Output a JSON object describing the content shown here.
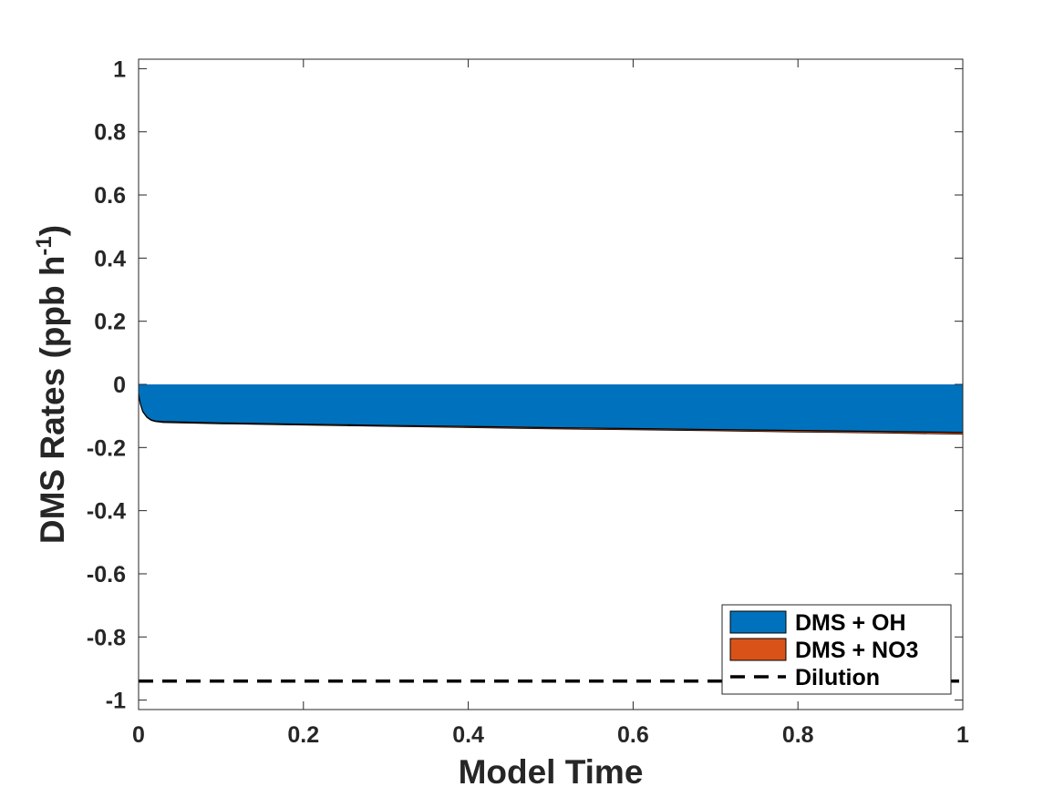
{
  "chart_data": {
    "type": "area",
    "xlabel": "Model Time",
    "ylabel_main": "DMS Rates (ppb h",
    "ylabel_sup": "-1",
    "ylabel_close": ")",
    "xlim": [
      0,
      1
    ],
    "ylim": [
      -1.03,
      1.03
    ],
    "x_ticks": [
      0,
      0.2,
      0.4,
      0.6,
      0.8,
      1
    ],
    "x_tick_labels": [
      "0",
      "0.2",
      "0.4",
      "0.6",
      "0.8",
      "1"
    ],
    "y_ticks": [
      1,
      0.8,
      0.6,
      0.4,
      0.2,
      0,
      -0.2,
      -0.4,
      -0.6,
      -0.8,
      -1
    ],
    "y_tick_labels": [
      "1",
      "0.8",
      "0.6",
      "0.4",
      "0.2",
      "0",
      "-0.2",
      "-0.4",
      "-0.6",
      "-0.8",
      "-1"
    ],
    "x": [
      0,
      0.002,
      0.005,
      0.01,
      0.015,
      0.02,
      0.03,
      0.05,
      0.1,
      0.2,
      0.3,
      0.4,
      0.5,
      0.6,
      0.7,
      0.8,
      0.9,
      1.0
    ],
    "series": [
      {
        "name": "DMS + OH",
        "kind": "stacked-area",
        "color": "#0072BD",
        "values": [
          -0.03,
          -0.06,
          -0.085,
          -0.103,
          -0.112,
          -0.116,
          -0.118,
          -0.119,
          -0.122,
          -0.126,
          -0.13,
          -0.133,
          -0.137,
          -0.14,
          -0.143,
          -0.146,
          -0.149,
          -0.152
        ]
      },
      {
        "name": "DMS + NO3",
        "kind": "stacked-area",
        "color": "#D95319",
        "values": [
          -0.001,
          -0.001,
          -0.002,
          -0.002,
          -0.002,
          -0.002,
          -0.003,
          -0.003,
          -0.003,
          -0.003,
          -0.003,
          -0.004,
          -0.004,
          -0.004,
          -0.004,
          -0.005,
          -0.005,
          -0.006
        ]
      },
      {
        "name": "Dilution",
        "kind": "dashed-line",
        "color": "#000000",
        "values_constant": -0.94
      }
    ],
    "legend": {
      "location": "bottom-right",
      "entries": [
        "DMS + OH",
        "DMS + NO3",
        "Dilution"
      ]
    },
    "box": true,
    "grid": false
  }
}
